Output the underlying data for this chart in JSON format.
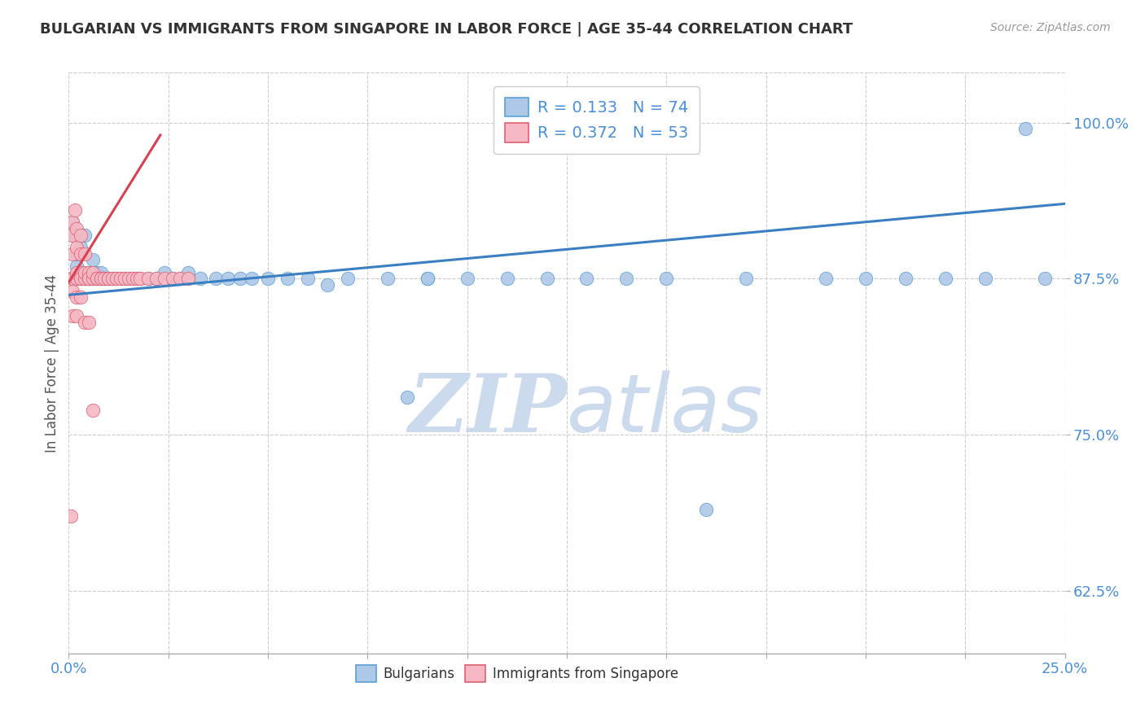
{
  "title": "BULGARIAN VS IMMIGRANTS FROM SINGAPORE IN LABOR FORCE | AGE 35-44 CORRELATION CHART",
  "source": "Source: ZipAtlas.com",
  "ylabel": "In Labor Force | Age 35-44",
  "xlim": [
    0.0,
    0.25
  ],
  "ylim": [
    0.575,
    1.04
  ],
  "blue_R": 0.133,
  "blue_N": 74,
  "pink_R": 0.372,
  "pink_N": 53,
  "blue_color": "#aec8e8",
  "pink_color": "#f5b8c4",
  "blue_edge_color": "#5a9fd4",
  "pink_edge_color": "#e06070",
  "blue_line_color": "#3a7fc1",
  "pink_line_color": "#d94050",
  "title_color": "#333333",
  "axis_label_color": "#4a90d9",
  "grid_color": "#cccccc",
  "watermark_color": "#ccdaee",
  "background_color": "#ffffff",
  "blue_line_x0": 0.0,
  "blue_line_y0": 0.862,
  "blue_line_x1": 0.25,
  "blue_line_y1": 0.935,
  "pink_line_x0": 0.0,
  "pink_line_y0": 0.872,
  "pink_line_x1": 0.023,
  "pink_line_y1": 0.99,
  "blue_pts_x": [
    0.001,
    0.001,
    0.001,
    0.002,
    0.002,
    0.002,
    0.002,
    0.002,
    0.003,
    0.003,
    0.003,
    0.003,
    0.004,
    0.004,
    0.004,
    0.004,
    0.005,
    0.005,
    0.005,
    0.006,
    0.006,
    0.006,
    0.007,
    0.007,
    0.008,
    0.008,
    0.008,
    0.009,
    0.009,
    0.01,
    0.01,
    0.011,
    0.012,
    0.013,
    0.014,
    0.015,
    0.016,
    0.017,
    0.018,
    0.02,
    0.022,
    0.024,
    0.026,
    0.028,
    0.03,
    0.033,
    0.037,
    0.04,
    0.043,
    0.046,
    0.05,
    0.055,
    0.06,
    0.065,
    0.07,
    0.08,
    0.085,
    0.09,
    0.1,
    0.11,
    0.13,
    0.15,
    0.16,
    0.17,
    0.19,
    0.2,
    0.21,
    0.22,
    0.23,
    0.24,
    0.245,
    0.09,
    0.12,
    0.14
  ],
  "blue_pts_y": [
    0.91,
    0.875,
    0.92,
    0.895,
    0.875,
    0.885,
    0.91,
    0.895,
    0.875,
    0.88,
    0.9,
    0.875,
    0.875,
    0.88,
    0.91,
    0.875,
    0.875,
    0.88,
    0.875,
    0.875,
    0.89,
    0.875,
    0.875,
    0.88,
    0.875,
    0.875,
    0.88,
    0.875,
    0.875,
    0.875,
    0.875,
    0.875,
    0.875,
    0.875,
    0.875,
    0.875,
    0.875,
    0.875,
    0.875,
    0.875,
    0.875,
    0.88,
    0.875,
    0.875,
    0.88,
    0.875,
    0.875,
    0.875,
    0.875,
    0.875,
    0.875,
    0.875,
    0.875,
    0.87,
    0.875,
    0.875,
    0.78,
    0.875,
    0.875,
    0.875,
    0.875,
    0.875,
    0.69,
    0.875,
    0.875,
    0.875,
    0.875,
    0.875,
    0.875,
    0.995,
    0.875,
    0.875,
    0.875,
    0.875
  ],
  "pink_pts_x": [
    0.0008,
    0.0008,
    0.001,
    0.001,
    0.001,
    0.0015,
    0.002,
    0.002,
    0.002,
    0.002,
    0.003,
    0.003,
    0.003,
    0.003,
    0.003,
    0.004,
    0.004,
    0.004,
    0.005,
    0.005,
    0.005,
    0.006,
    0.006,
    0.007,
    0.007,
    0.008,
    0.008,
    0.009,
    0.01,
    0.01,
    0.011,
    0.012,
    0.013,
    0.014,
    0.015,
    0.016,
    0.017,
    0.018,
    0.02,
    0.022,
    0.024,
    0.026,
    0.028,
    0.03,
    0.001,
    0.001,
    0.002,
    0.002,
    0.003,
    0.004,
    0.005,
    0.006,
    0.0005
  ],
  "pink_pts_y": [
    0.875,
    0.91,
    0.875,
    0.895,
    0.92,
    0.93,
    0.875,
    0.88,
    0.9,
    0.915,
    0.875,
    0.88,
    0.875,
    0.895,
    0.91,
    0.875,
    0.88,
    0.895,
    0.875,
    0.88,
    0.875,
    0.875,
    0.88,
    0.875,
    0.875,
    0.875,
    0.875,
    0.875,
    0.875,
    0.875,
    0.875,
    0.875,
    0.875,
    0.875,
    0.875,
    0.875,
    0.875,
    0.875,
    0.875,
    0.875,
    0.875,
    0.875,
    0.875,
    0.875,
    0.845,
    0.865,
    0.845,
    0.86,
    0.86,
    0.84,
    0.84,
    0.77,
    0.685
  ]
}
